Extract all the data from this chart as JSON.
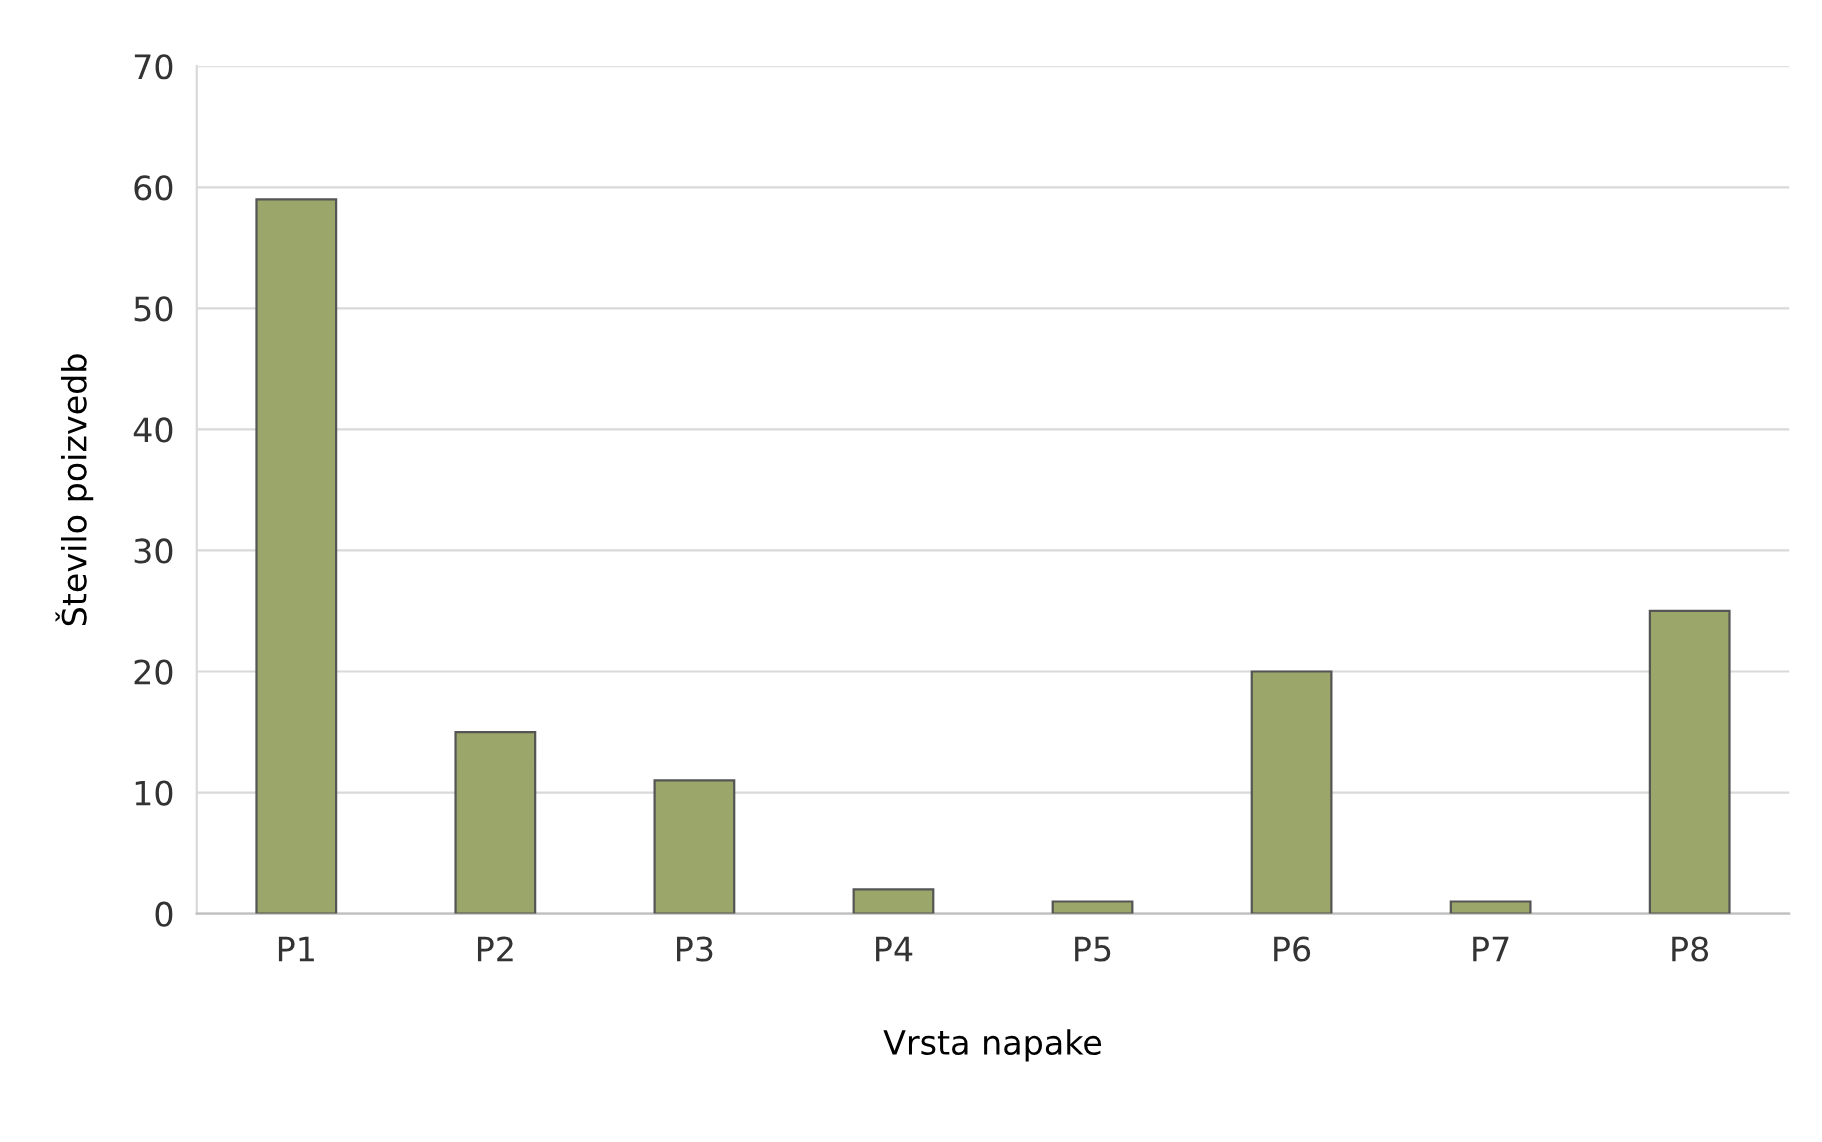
{
  "chart_data": {
    "type": "bar",
    "xlabel": "Vrsta napake",
    "ylabel": "Število poizvedb",
    "categories": [
      "P1",
      "P2",
      "P3",
      "P4",
      "P5",
      "P6",
      "P7",
      "P8"
    ],
    "values": [
      59,
      15,
      11,
      2,
      1,
      20,
      1,
      25
    ],
    "color": "#9ba66a",
    "ylim": [
      0,
      70
    ],
    "yticks": [
      0,
      10,
      20,
      30,
      40,
      50,
      60,
      70
    ],
    "grid": "y",
    "legend": false
  }
}
